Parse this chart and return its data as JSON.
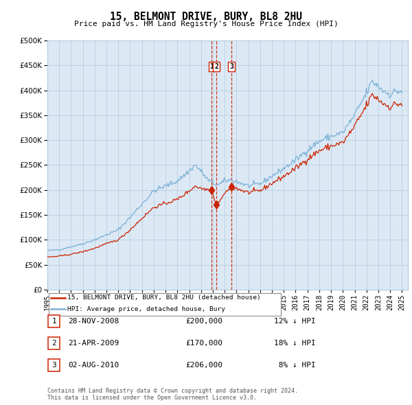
{
  "title": "15, BELMONT DRIVE, BURY, BL8 2HU",
  "subtitle": "Price paid vs. HM Land Registry's House Price Index (HPI)",
  "bg_color": "#dce9f5",
  "plot_bg_color": "#dce9f5",
  "hpi_color": "#7ab0d4",
  "property_color": "#cc2200",
  "sale_color": "#cc2200",
  "transactions": [
    {
      "label": "1",
      "date": "28-NOV-2008",
      "price": 200000,
      "pct": "12% ↓ HPI",
      "x_year": 2008.91
    },
    {
      "label": "2",
      "date": "21-APR-2009",
      "price": 170000,
      "pct": "18% ↓ HPI",
      "x_year": 2009.3
    },
    {
      "label": "3",
      "date": "02-AUG-2010",
      "price": 206000,
      "pct": "8% ↓ HPI",
      "x_year": 2010.58
    }
  ],
  "legend_items": [
    {
      "label": "15, BELMONT DRIVE, BURY, BL8 2HU (detached house)",
      "color": "#cc2200"
    },
    {
      "label": "HPI: Average price, detached house, Bury",
      "color": "#7ab0d4"
    }
  ],
  "footer": "Contains HM Land Registry data © Crown copyright and database right 2024.\nThis data is licensed under the Open Government Licence v3.0.",
  "ylim": [
    0,
    500000
  ],
  "xlim": [
    1995,
    2025.5
  ],
  "yticks": [
    0,
    50000,
    100000,
    150000,
    200000,
    250000,
    300000,
    350000,
    400000,
    450000,
    500000
  ],
  "ytick_labels": [
    "£0",
    "£50K",
    "£100K",
    "£150K",
    "£200K",
    "£250K",
    "£300K",
    "£350K",
    "£400K",
    "£450K",
    "£500K"
  ],
  "xticks": [
    1995,
    1996,
    1997,
    1998,
    1999,
    2000,
    2001,
    2002,
    2003,
    2004,
    2005,
    2006,
    2007,
    2008,
    2009,
    2010,
    2011,
    2012,
    2013,
    2014,
    2015,
    2016,
    2017,
    2018,
    2019,
    2020,
    2021,
    2022,
    2023,
    2024,
    2025
  ]
}
